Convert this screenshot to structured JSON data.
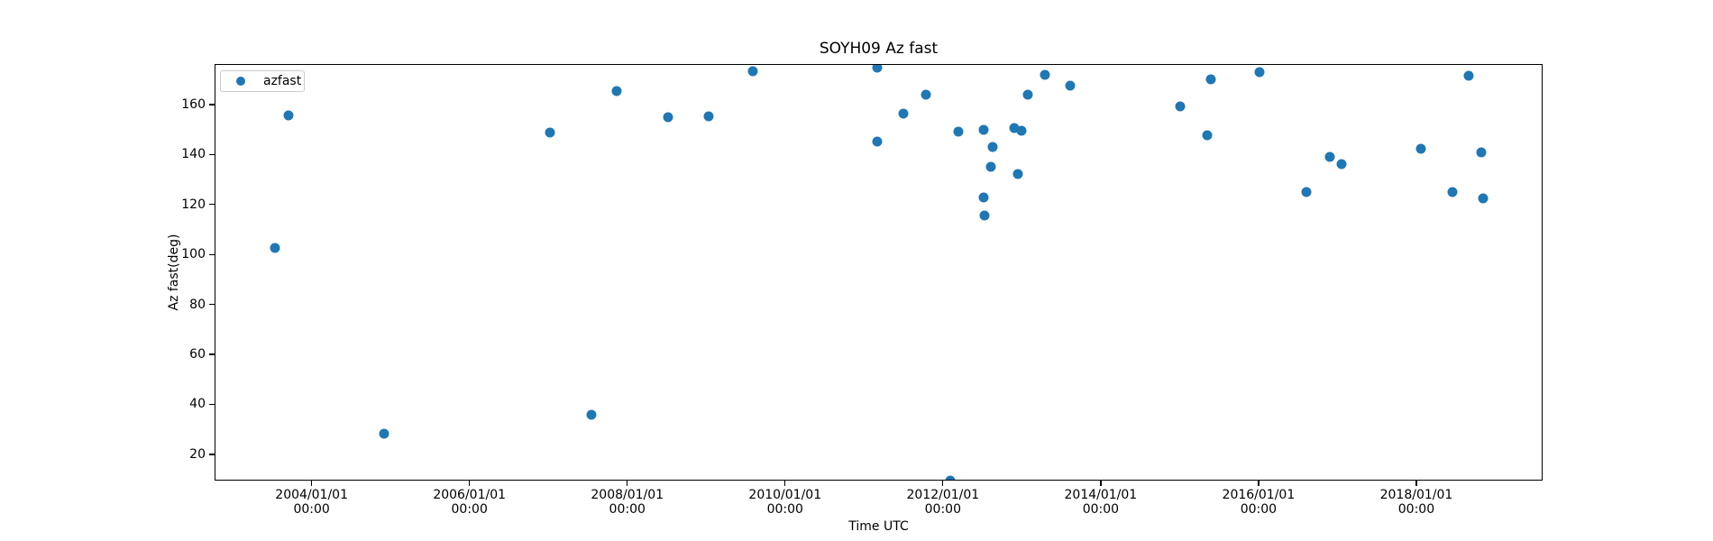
{
  "chart_data": {
    "type": "scatter",
    "title": "SOYH09 Az fast",
    "xlabel": "Time UTC",
    "ylabel": "Az fast(deg)",
    "legend": [
      "azfast"
    ],
    "legend_position": "upper left",
    "marker_color": "#1f77b4",
    "axis_color": "#000000",
    "legend_border_color": "#cccccc",
    "grid": false,
    "x_unit": "decimal_year_utc",
    "xlim": [
      2002.77,
      2019.6
    ],
    "ylim": [
      9.5,
      176.2
    ],
    "y_ticks": [
      20,
      40,
      60,
      80,
      100,
      120,
      140,
      160
    ],
    "x_ticks": [
      {
        "value": 2004,
        "lines": [
          "2004/01/01",
          "00:00"
        ]
      },
      {
        "value": 2006,
        "lines": [
          "2006/01/01",
          "00:00"
        ]
      },
      {
        "value": 2008,
        "lines": [
          "2008/01/01",
          "00:00"
        ]
      },
      {
        "value": 2010,
        "lines": [
          "2010/01/01",
          "00:00"
        ]
      },
      {
        "value": 2012,
        "lines": [
          "2012/01/01",
          "00:00"
        ]
      },
      {
        "value": 2014,
        "lines": [
          "2014/01/01",
          "00:00"
        ]
      },
      {
        "value": 2016,
        "lines": [
          "2016/01/01",
          "00:00"
        ]
      },
      {
        "value": 2018,
        "lines": [
          "2018/01/01",
          "00:00"
        ]
      }
    ],
    "points": [
      [
        2003.52,
        103.0
      ],
      [
        2003.7,
        156.0
      ],
      [
        2004.91,
        28.6
      ],
      [
        2007.01,
        149.2
      ],
      [
        2007.54,
        36.2
      ],
      [
        2007.85,
        165.8
      ],
      [
        2008.5,
        155.4
      ],
      [
        2009.02,
        155.8
      ],
      [
        2009.58,
        173.7
      ],
      [
        2011.16,
        175.2
      ],
      [
        2011.16,
        145.6
      ],
      [
        2011.49,
        156.8
      ],
      [
        2011.77,
        164.3
      ],
      [
        2012.08,
        9.9
      ],
      [
        2012.18,
        149.6
      ],
      [
        2012.51,
        150.3
      ],
      [
        2012.51,
        123.0
      ],
      [
        2012.52,
        115.8
      ],
      [
        2012.6,
        135.6
      ],
      [
        2012.62,
        143.2
      ],
      [
        2012.89,
        151.0
      ],
      [
        2012.94,
        132.4
      ],
      [
        2012.99,
        149.9
      ],
      [
        2013.07,
        164.2
      ],
      [
        2013.28,
        172.1
      ],
      [
        2013.6,
        167.9
      ],
      [
        2015.0,
        159.6
      ],
      [
        2015.34,
        148.1
      ],
      [
        2015.38,
        170.5
      ],
      [
        2016.0,
        173.4
      ],
      [
        2016.59,
        125.4
      ],
      [
        2016.89,
        139.4
      ],
      [
        2017.04,
        136.5
      ],
      [
        2018.05,
        142.7
      ],
      [
        2018.45,
        125.4
      ],
      [
        2018.65,
        171.9
      ],
      [
        2018.81,
        141.2
      ],
      [
        2018.83,
        122.8
      ]
    ]
  }
}
